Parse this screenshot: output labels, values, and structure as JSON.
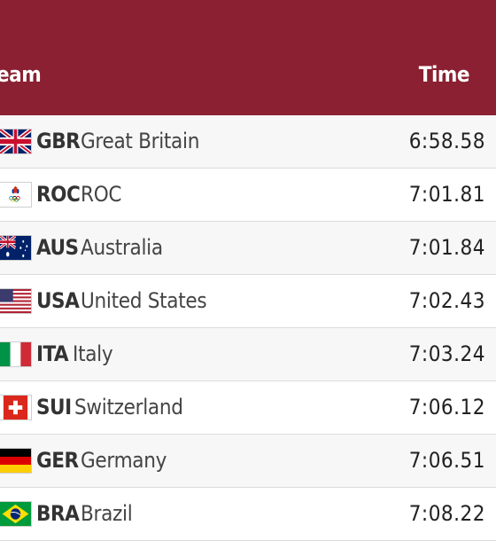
{
  "header": {
    "team_label": "eam",
    "time_label": "Time",
    "background": "#8a2031"
  },
  "rows": [
    {
      "flag": "flag-gbr-icon",
      "code": "GBR",
      "country": "Great Britain",
      "time": "6:58.58"
    },
    {
      "flag": "flag-roc-icon",
      "code": "ROC",
      "country": "ROC",
      "time": "7:01.81"
    },
    {
      "flag": "flag-aus-icon",
      "code": "AUS",
      "country": "Australia",
      "time": "7:01.84"
    },
    {
      "flag": "flag-usa-icon",
      "code": "USA",
      "country": "United States",
      "time": "7:02.43"
    },
    {
      "flag": "flag-ita-icon",
      "code": "ITA",
      "country": "Italy",
      "time": "7:03.24"
    },
    {
      "flag": "flag-sui-icon",
      "code": "SUI",
      "country": "Switzerland",
      "time": "7:06.12"
    },
    {
      "flag": "flag-ger-icon",
      "code": "GER",
      "country": "Germany",
      "time": "7:06.51"
    },
    {
      "flag": "flag-bra-icon",
      "code": "BRA",
      "country": "Brazil",
      "time": "7:08.22"
    }
  ]
}
